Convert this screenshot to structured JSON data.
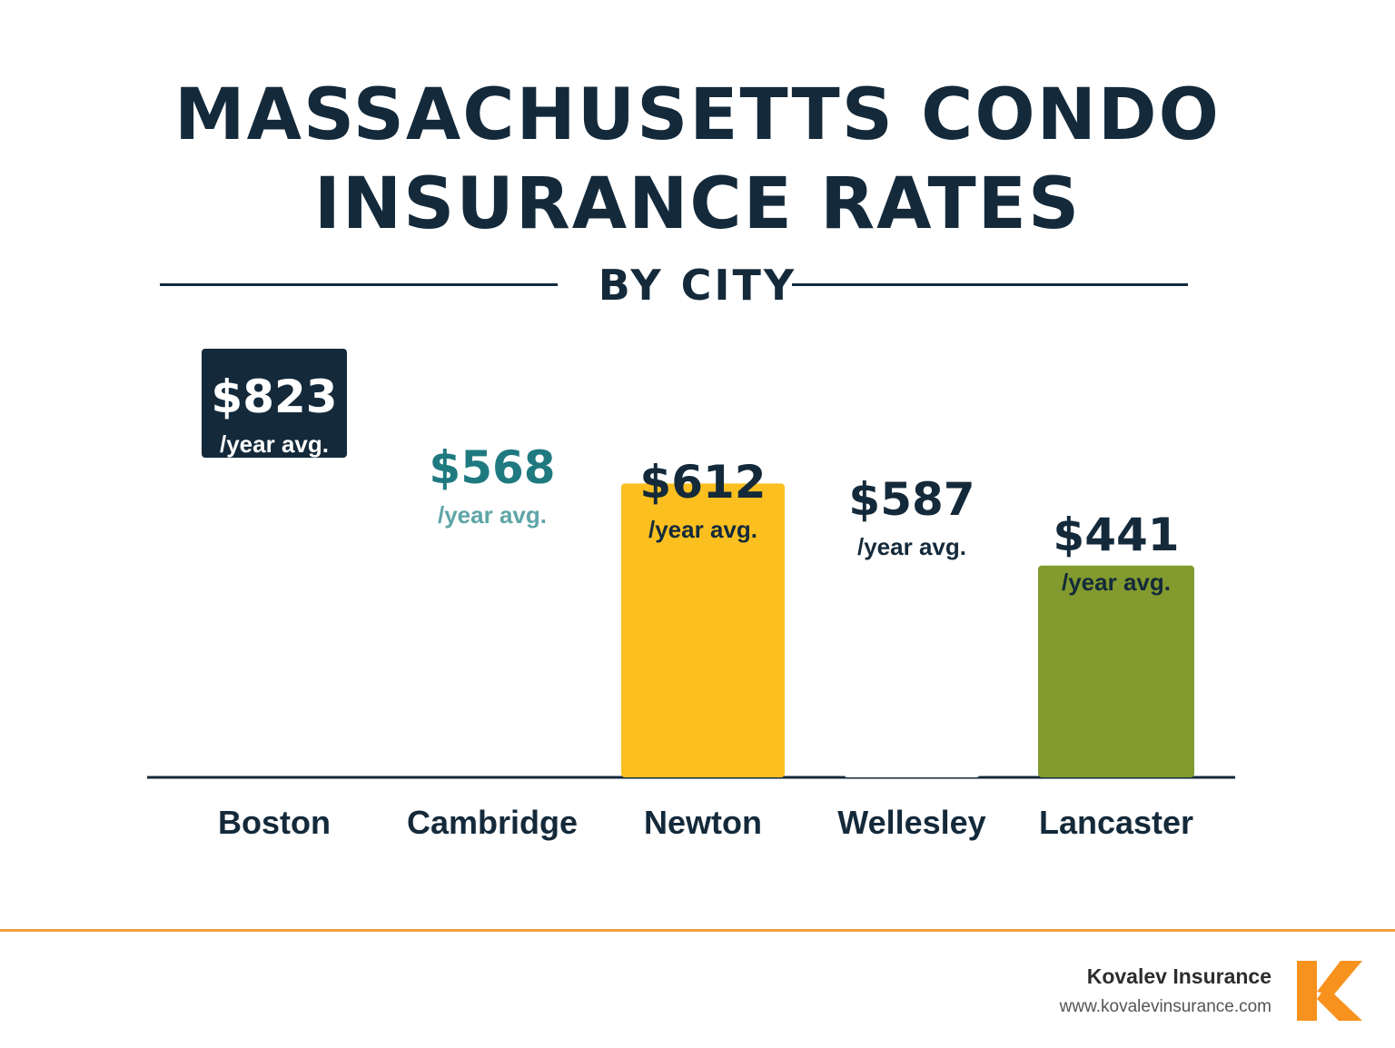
{
  "title": "MASSACHUSETTS CONDO INSURANCE RATES",
  "subtitle": "BY CITY",
  "brand": {
    "name": "Kovalev Insurance",
    "url": "www.kovalevinsurance.com",
    "logo_letter": "K",
    "logo_color": "#f7921e"
  },
  "colors": {
    "title": "#142a3b",
    "axis": "#142a3b",
    "footer_rule": "#f2a03c"
  },
  "chart_data": {
    "type": "bar",
    "title": "MASSACHUSETTS CONDO INSURANCE RATES",
    "subtitle": "BY CITY",
    "xlabel": "",
    "ylabel": "",
    "ylim": [
      0,
      900
    ],
    "grid": false,
    "legend": "none",
    "categories": [
      "Boston",
      "Cambridge",
      "Newton",
      "Wellesley",
      "Lancaster"
    ],
    "values": [
      823,
      568,
      612,
      587,
      441
    ],
    "value_labels": [
      "$823",
      "$568",
      "$612",
      "$587",
      "$441"
    ],
    "unit_label": "/year avg.",
    "series": [
      {
        "values": [
          823,
          568,
          612,
          587,
          441
        ],
        "colors": [
          "#142a3b",
          "#1f7a80",
          "#fbc020",
          "#ffffff",
          "#829a2e"
        ]
      }
    ]
  }
}
